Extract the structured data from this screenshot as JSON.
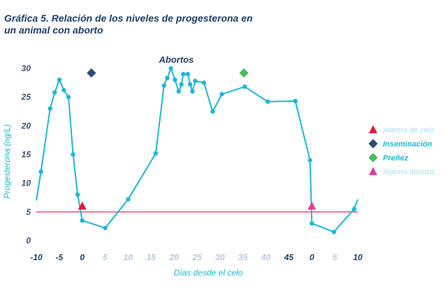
{
  "chart_data": {
    "type": "line",
    "title_line1": "Gráfica 5. Relación de los niveles de progesterona en",
    "title_line2": "un animal con aborto",
    "ylabel": "Progesterona (ng/L)",
    "xlabel": "Días desde el celo",
    "ylim": [
      0,
      30
    ],
    "yticks": [
      0,
      5,
      10,
      15,
      20,
      25,
      30
    ],
    "grid": false,
    "annotation": "Abortos",
    "x_tick_labels": [
      {
        "label": "-10",
        "style": "dark"
      },
      {
        "label": "-5",
        "style": "dark"
      },
      {
        "label": "0",
        "style": "dark"
      },
      {
        "label": "5",
        "style": "light"
      },
      {
        "label": "10",
        "style": "light"
      },
      {
        "label": "15",
        "style": "light"
      },
      {
        "label": "20",
        "style": "light"
      },
      {
        "label": "25",
        "style": "light"
      },
      {
        "label": "30",
        "style": "light"
      },
      {
        "label": "35",
        "style": "light"
      },
      {
        "label": "40",
        "style": "light"
      },
      {
        "label": "45",
        "style": "dark"
      },
      {
        "label": "0",
        "style": "dark"
      },
      {
        "label": "5",
        "style": "light"
      },
      {
        "label": "10",
        "style": "dark"
      }
    ],
    "threshold": {
      "value": 5,
      "color": "#ef5a7a"
    },
    "series_color": "#1fb6d6",
    "series": [
      {
        "values": [
          [
            -10,
            7
          ],
          [
            -9,
            12
          ],
          [
            -7,
            23
          ],
          [
            -6,
            25.8
          ],
          [
            -5,
            28
          ],
          [
            -4,
            26.2
          ],
          [
            -3,
            25
          ],
          [
            -2,
            15
          ],
          [
            -1,
            8
          ],
          [
            0,
            3.5
          ],
          [
            5,
            2.2
          ],
          [
            10,
            7.2
          ],
          [
            16,
            15.2
          ],
          [
            17.8,
            27
          ],
          [
            18.5,
            28.3
          ],
          [
            19.3,
            30
          ],
          [
            20.2,
            28
          ],
          [
            21,
            26
          ],
          [
            21.6,
            27.2
          ],
          [
            22,
            29
          ],
          [
            23,
            29
          ],
          [
            23.5,
            27.2
          ],
          [
            24,
            26
          ],
          [
            24.6,
            27.8
          ],
          [
            26.5,
            27.5
          ],
          [
            28.4,
            22.5
          ],
          [
            30.4,
            25.5
          ],
          [
            35.4,
            26.8
          ],
          [
            40.4,
            24.2
          ],
          [
            46.4,
            24.3
          ],
          [
            49.6,
            14
          ],
          [
            50,
            3
          ],
          [
            54.8,
            1.5
          ],
          [
            59.2,
            5.5
          ],
          [
            60,
            7.2
          ]
        ]
      }
    ],
    "markers": [
      {
        "name": "Alarma de celo",
        "shape": "triangle",
        "color": "#e8173c",
        "x": 0,
        "y": 6
      },
      {
        "name": "Inseminación",
        "shape": "diamond",
        "color": "#2c4a72",
        "x": 2,
        "y": 29.2
      },
      {
        "name": "Preñez",
        "shape": "diamond",
        "color": "#4cb85a",
        "x": 35.2,
        "y": 29.2
      },
      {
        "name": "Alarma abortos",
        "shape": "triangle",
        "color": "#e0409a",
        "x": 50,
        "y": 6
      }
    ],
    "legend": {
      "position": "right",
      "items": [
        {
          "label": "Alarma de celo",
          "shape": "triangle",
          "color": "#e8173c",
          "text_color": "#a9dfee"
        },
        {
          "label": "Inseminación",
          "shape": "diamond",
          "color": "#2c4a72",
          "text_color": "#1fb6d6"
        },
        {
          "label": "Preñez",
          "shape": "diamond",
          "color": "#4cb85a",
          "text_color": "#1fb6d6"
        },
        {
          "label": "Alarma abortos",
          "shape": "triangle",
          "color": "#e0409a",
          "text_color": "#a9dfee"
        }
      ]
    }
  }
}
